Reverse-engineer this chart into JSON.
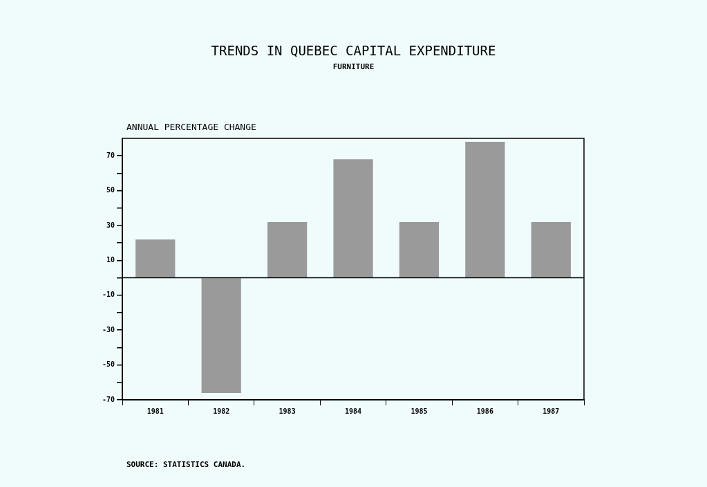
{
  "chart_data": {
    "type": "bar",
    "title": "TRENDS IN QUEBEC CAPITAL EXPENDITURE",
    "subtitle": "FURNITURE",
    "ylabel": "ANNUAL PERCENTAGE CHANGE",
    "annotations": [
      "SOURCE:   STATISTICS CANADA."
    ],
    "categories": [
      "1981",
      "1982",
      "1983",
      "1984",
      "1985",
      "1986",
      "1987"
    ],
    "values": [
      22,
      -66,
      32,
      68,
      32,
      78,
      32
    ],
    "color": "#9a9a9a",
    "ylim": [
      -70,
      80
    ],
    "yticks": [
      -70,
      {
        "value": -60,
        "label": null
      },
      -50,
      {
        "value": -40,
        "label": null
      },
      -30,
      {
        "value": -20,
        "label": null
      },
      -10,
      {
        "value": 0,
        "label": null
      },
      10,
      {
        "value": 20,
        "label": null
      },
      30,
      {
        "value": 40,
        "label": null
      },
      50,
      {
        "value": 60,
        "label": null
      },
      70
    ],
    "ref_lines": [
      {
        "axis": "y",
        "value": 0,
        "color": "#000000"
      }
    ],
    "grid": false,
    "legend": false
  }
}
